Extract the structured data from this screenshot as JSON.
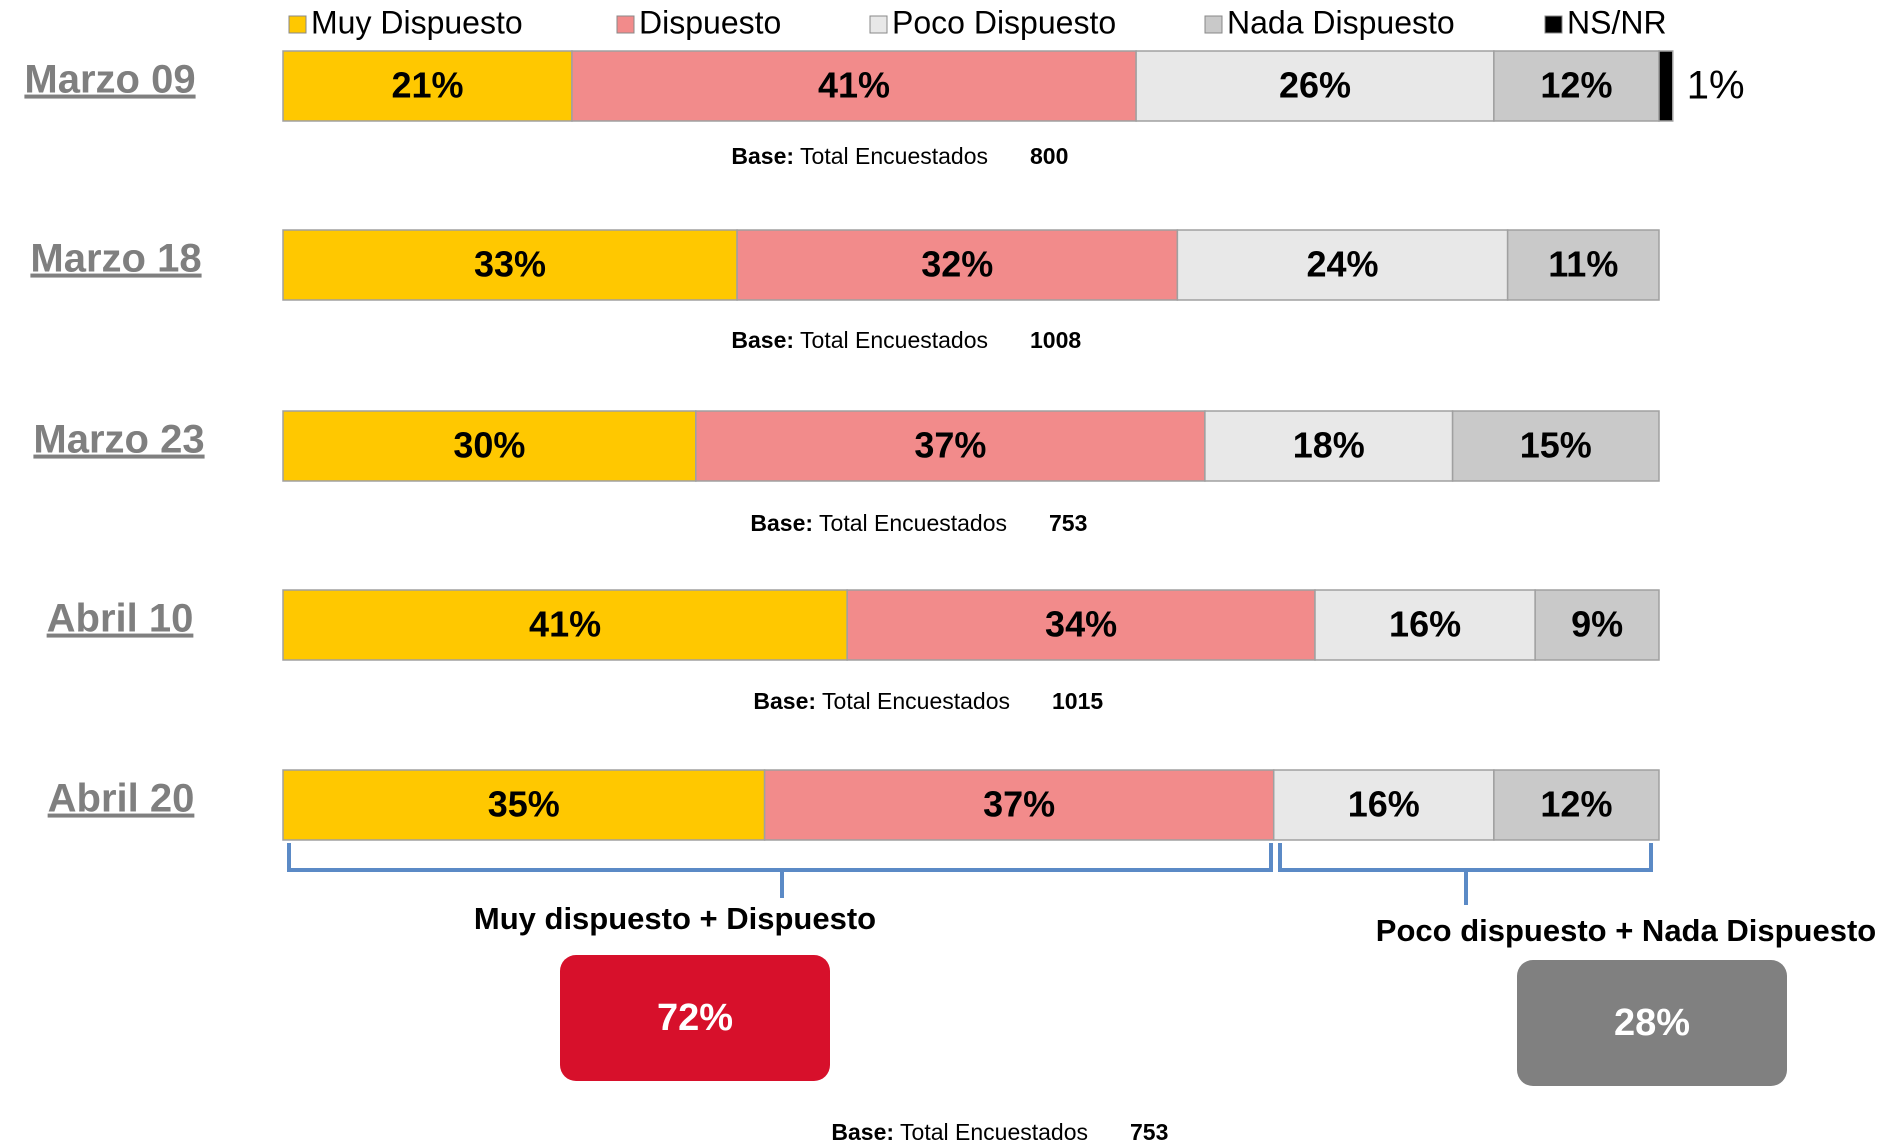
{
  "chart_data": {
    "type": "stacked-bar-horizontal",
    "categories": [
      "Marzo 09",
      "Marzo 18",
      "Marzo 23",
      "Abril 10",
      "Abril 20"
    ],
    "xlim": [
      0,
      100
    ],
    "series": [
      {
        "name": "Muy Dispuesto",
        "color": "#ffc800",
        "values": [
          21,
          33,
          30,
          41,
          35
        ],
        "value_labels": [
          "21%",
          "33%",
          "30%",
          "41%",
          "35%"
        ]
      },
      {
        "name": "Dispuesto",
        "color": "#f28b8b",
        "values": [
          41,
          32,
          37,
          34,
          37
        ],
        "value_labels": [
          "41%",
          "32%",
          "37%",
          "34%",
          "37%"
        ]
      },
      {
        "name": "Poco Dispuesto",
        "color": "#e8e8e8",
        "values": [
          26,
          24,
          18,
          16,
          16
        ],
        "value_labels": [
          "26%",
          "24%",
          "18%",
          "16%",
          "16%"
        ]
      },
      {
        "name": "Nada Dispuesto",
        "color": "#c9c9c9",
        "values": [
          12,
          11,
          15,
          9,
          12
        ],
        "value_labels": [
          "12%",
          "11%",
          "15%",
          "9%",
          "12%"
        ]
      },
      {
        "name": "NS/NR",
        "color": "#000000",
        "values": [
          1,
          null,
          null,
          null,
          null
        ],
        "value_labels": [
          "1%",
          null,
          null,
          null,
          null
        ]
      }
    ],
    "base_label": "Base:",
    "base_text": "Total Encuestados",
    "bases": [
      800,
      1008,
      753,
      1015,
      753
    ],
    "groups": [
      {
        "label": "Muy dispuesto + Dispuesto",
        "value": 72,
        "value_label": "72%",
        "color": "#d7102b"
      },
      {
        "label": "Poco dispuesto + Nada Dispuesto",
        "value": 28,
        "value_label": "28%",
        "color": "#808080"
      }
    ]
  }
}
